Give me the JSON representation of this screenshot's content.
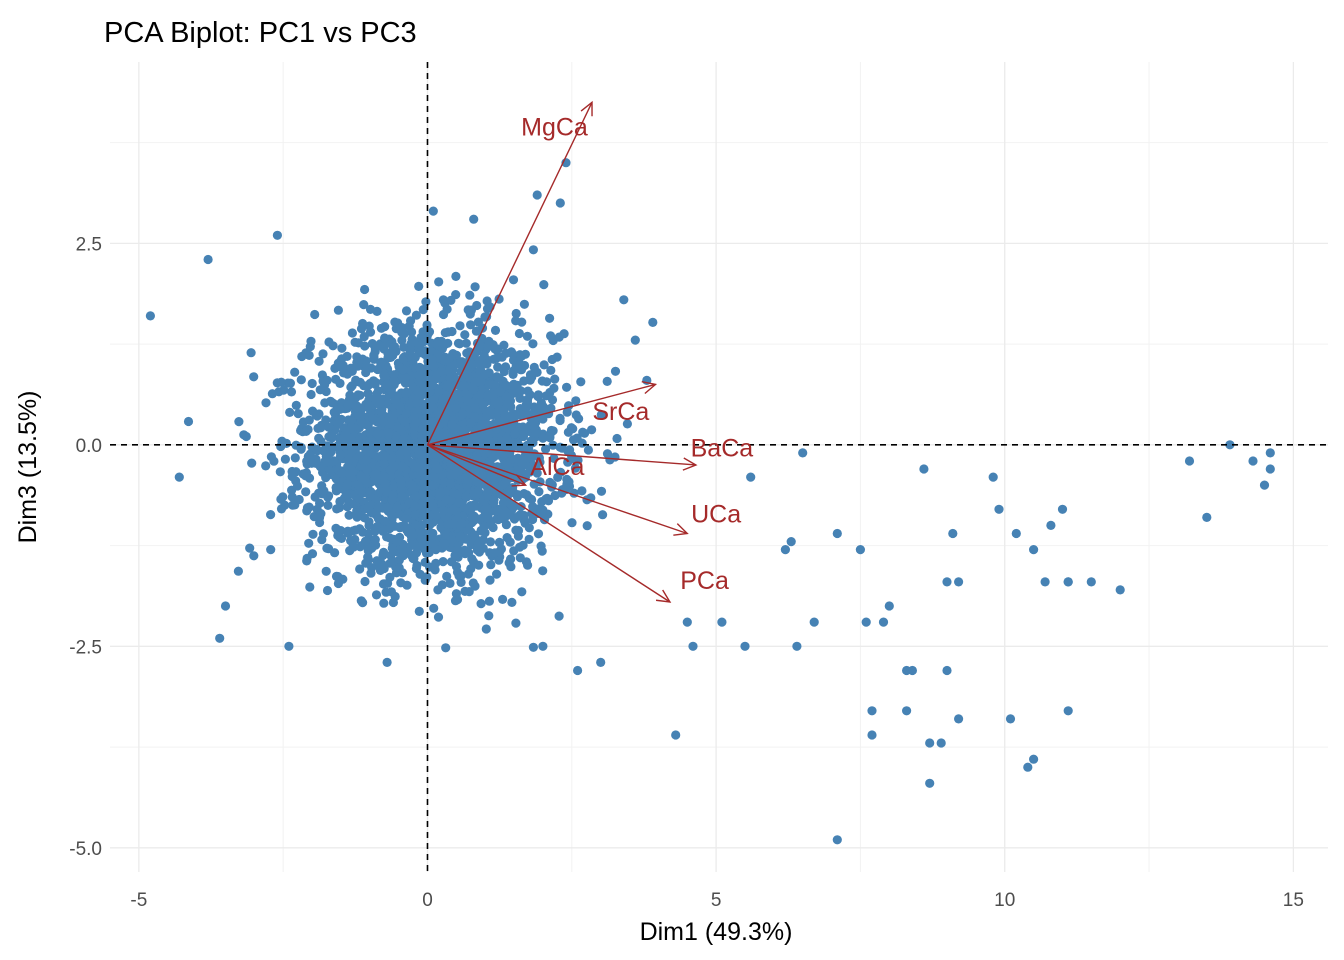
{
  "chart_data": {
    "type": "scatter",
    "title": "PCA Biplot: PC1 vs PC3",
    "xlabel": "Dim1 (49.3%)",
    "ylabel": "Dim3 (13.5%)",
    "xlim": [
      -5.5,
      15.6
    ],
    "ylim": [
      -5.3,
      4.75
    ],
    "x_ticks": [
      -5,
      0,
      5,
      10,
      15
    ],
    "x_tick_labels": [
      "-5",
      "0",
      "5",
      "10",
      "15"
    ],
    "y_ticks": [
      -5,
      -2.5,
      0,
      2.5
    ],
    "y_tick_labels": [
      "-5.0",
      "-2.5",
      "0.0",
      "2.5"
    ],
    "grid": true,
    "reference_lines": {
      "x": 0,
      "y": 0,
      "style": "dashed"
    },
    "point_color": "#4682b4",
    "arrow_color": "#a52a2a",
    "outlier_points": [
      [
        -4.8,
        1.6
      ],
      [
        -3.8,
        2.3
      ],
      [
        -4.3,
        -0.4
      ],
      [
        -3.5,
        -2.0
      ],
      [
        -3.6,
        -2.4
      ],
      [
        -2.6,
        2.6
      ],
      [
        -2.4,
        -2.5
      ],
      [
        -0.7,
        -2.7
      ],
      [
        0.1,
        2.9
      ],
      [
        0.8,
        2.8
      ],
      [
        2.4,
        3.5
      ],
      [
        2.3,
        3.0
      ],
      [
        1.9,
        3.1
      ],
      [
        3.4,
        1.8
      ],
      [
        3.8,
        0.8
      ],
      [
        3.6,
        1.3
      ],
      [
        2.6,
        -2.8
      ],
      [
        2.0,
        -2.5
      ],
      [
        3.0,
        -2.7
      ],
      [
        4.3,
        -3.6
      ],
      [
        4.6,
        -2.5
      ],
      [
        4.5,
        -2.2
      ],
      [
        5.5,
        -2.5
      ],
      [
        5.1,
        -2.2
      ],
      [
        5.6,
        -0.4
      ],
      [
        6.3,
        -1.2
      ],
      [
        6.5,
        -0.1
      ],
      [
        6.4,
        -2.5
      ],
      [
        6.7,
        -2.2
      ],
      [
        6.2,
        -1.3
      ],
      [
        7.1,
        -1.1
      ],
      [
        7.1,
        -4.9
      ],
      [
        7.5,
        -1.3
      ],
      [
        7.6,
        -2.2
      ],
      [
        7.7,
        -3.3
      ],
      [
        7.7,
        -3.6
      ],
      [
        7.9,
        -2.2
      ],
      [
        8.0,
        -2.0
      ],
      [
        8.3,
        -2.8
      ],
      [
        8.4,
        -2.8
      ],
      [
        8.3,
        -3.3
      ],
      [
        8.6,
        -0.3
      ],
      [
        8.7,
        -3.7
      ],
      [
        8.7,
        -4.2
      ],
      [
        8.9,
        -3.7
      ],
      [
        9.0,
        -1.7
      ],
      [
        9.0,
        -2.8
      ],
      [
        9.1,
        -1.1
      ],
      [
        9.2,
        -1.7
      ],
      [
        9.2,
        -3.4
      ],
      [
        9.8,
        -0.4
      ],
      [
        9.9,
        -0.8
      ],
      [
        10.1,
        -3.4
      ],
      [
        10.2,
        -1.1
      ],
      [
        10.4,
        -4.0
      ],
      [
        10.5,
        -1.3
      ],
      [
        10.5,
        -3.9
      ],
      [
        10.7,
        -1.7
      ],
      [
        10.8,
        -1.0
      ],
      [
        11.0,
        -0.8
      ],
      [
        11.1,
        -1.7
      ],
      [
        11.1,
        -1.7
      ],
      [
        11.1,
        -3.3
      ],
      [
        11.5,
        -1.7
      ],
      [
        12.0,
        -1.8
      ],
      [
        13.2,
        -0.2
      ],
      [
        13.5,
        -0.9
      ],
      [
        13.9,
        0.0
      ],
      [
        14.3,
        -0.2
      ],
      [
        14.5,
        -0.5
      ],
      [
        14.6,
        -0.1
      ],
      [
        14.6,
        -0.3
      ]
    ],
    "cloud": {
      "count": 3200,
      "center": [
        0.1,
        -0.05
      ],
      "sd": [
        1.05,
        0.72
      ],
      "x_range": [
        -4.6,
        4.5
      ],
      "y_range": [
        -2.6,
        2.6
      ]
    },
    "arrows": [
      {
        "name": "MgCa",
        "x": 2.85,
        "y": 4.25,
        "label_x": 2.2,
        "label_y": 3.95
      },
      {
        "name": "SrCa",
        "x": 3.95,
        "y": 0.75,
        "label_x": 3.35,
        "label_y": 0.42
      },
      {
        "name": "BaCa",
        "x": 4.65,
        "y": -0.25,
        "label_x": 5.1,
        "label_y": -0.03
      },
      {
        "name": "AlCa",
        "x": 1.7,
        "y": -0.5,
        "label_x": 2.25,
        "label_y": -0.26
      },
      {
        "name": "UCa",
        "x": 4.5,
        "y": -1.1,
        "label_x": 5.0,
        "label_y": -0.85
      },
      {
        "name": "PCa",
        "x": 4.2,
        "y": -1.95,
        "label_x": 4.8,
        "label_y": -1.68
      }
    ]
  }
}
